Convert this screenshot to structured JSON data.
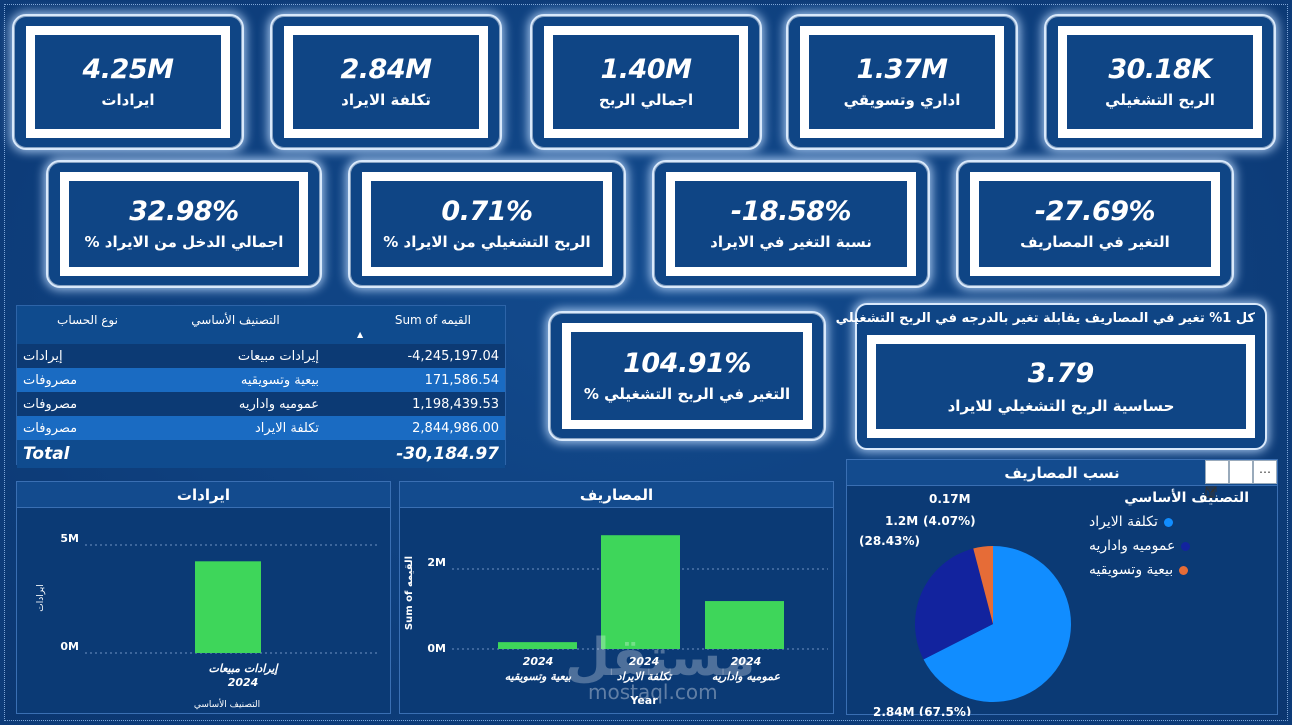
{
  "kpis_top": [
    {
      "value": "4.25M",
      "label": "ايرادات"
    },
    {
      "value": "2.84M",
      "label": "تكلفة الايراد"
    },
    {
      "value": "1.40M",
      "label": "اجمالي الربح"
    },
    {
      "value": "1.37M",
      "label": "اداري وتسويقي"
    },
    {
      "value": "30.18K",
      "label": "الربح التشغيلي"
    }
  ],
  "kpis_mid": [
    {
      "value": "32.98%",
      "label": "اجمالي الدخل من الايراد %"
    },
    {
      "value": "0.71%",
      "label": "الربح التشغيلي من الايراد %"
    },
    {
      "value": "-18.58%",
      "label": "نسبة التغير في الايراد"
    },
    {
      "value": "-27.69%",
      "label": "التغير في المصاريف"
    }
  ],
  "kpi_op_change": {
    "value": "104.91%",
    "label": "التغير في الربح التشغيلي %"
  },
  "sensitivity": {
    "title": "كل 1% تغير في المصاريف يقابلة تغير بالدرجه في الربح التشغيلي",
    "value": "3.79",
    "label": "حساسية الربح التشغيلي للايراد"
  },
  "table": {
    "headers": {
      "account_type": "نوع الحساب",
      "category": "التصنيف الأساسي",
      "value": "Sum of القيمه"
    },
    "rows": [
      {
        "account_type": "إيرادات",
        "category": "إيرادات مبيعات",
        "value": "-4,245,197.04"
      },
      {
        "account_type": "مصروفات",
        "category": "بيعية وتسويقيه",
        "value": "171,586.54"
      },
      {
        "account_type": "مصروفات",
        "category": "عموميه واداريه",
        "value": "1,198,439.53"
      },
      {
        "account_type": "مصروفات",
        "category": "تكلفة الايراد",
        "value": "2,844,986.00"
      }
    ],
    "total_label": "Total",
    "total_value": "-30,184.97"
  },
  "revenue_chart": {
    "title": "ايرادات",
    "ylabel": "ايرادات",
    "xlabel": "التصنيف الأساسي",
    "tick_labels": {
      "top": "5M",
      "bottom": "0M"
    },
    "category_label": "إيرادات مبيعات",
    "year_label": "2024"
  },
  "expenses_chart": {
    "title": "المصاريف",
    "ylabel": "Sum of القيمه",
    "xlabel": "Year",
    "tick_labels": {
      "top": "2M",
      "bottom": "0M"
    },
    "bars": [
      {
        "year": "2024",
        "category": "بيعية وتسويقيه"
      },
      {
        "year": "2024",
        "category": "تكلفة الايراد"
      },
      {
        "year": "2024",
        "category": "عموميه واداريه"
      }
    ]
  },
  "pie_chart": {
    "title": "نسب المصاريف",
    "legend_title": "التصنيف الأساسي",
    "slices": [
      {
        "name": "تكلفة الايراد",
        "color": "#118dff",
        "label": "2.84M (67.5%)"
      },
      {
        "name": "عموميه واداريه",
        "color": "#12239e",
        "label_a": "1.2M",
        "label_b": "(28.43%)"
      },
      {
        "name": "بيعية وتسويقيه",
        "color": "#e66c37",
        "label_a": "0.17M",
        "label_b": "(4.07%)"
      }
    ],
    "toolbar": {
      "filter_icon": "filter-icon",
      "focus_icon": "focus-mode-icon",
      "more_icon": "more-options-icon"
    }
  },
  "chart_data": [
    {
      "type": "bar",
      "title": "ايرادات",
      "categories": [
        "إيرادات مبيعات"
      ],
      "series_year": "2024",
      "values": [
        4245197.04
      ],
      "ylabel": "ايرادات",
      "xlabel": "التصنيف الأساسي",
      "ylim": [
        0,
        5000000
      ],
      "color": "#3ed65a"
    },
    {
      "type": "bar",
      "title": "المصاريف",
      "categories": [
        "بيعية وتسويقيه",
        "تكلفة الايراد",
        "عموميه واداريه"
      ],
      "series_year": "2024",
      "values": [
        171586.54,
        2844986.0,
        1198439.53
      ],
      "ylabel": "Sum of القيمه",
      "xlabel": "Year",
      "ylim": [
        0,
        3000000
      ],
      "color": "#3ed65a"
    },
    {
      "type": "pie",
      "title": "نسب المصاريف",
      "categories": [
        "تكلفة الايراد",
        "عموميه واداريه",
        "بيعية وتسويقيه"
      ],
      "values": [
        2844986.0,
        1198439.53,
        171586.54
      ],
      "percentages": [
        67.5,
        28.43,
        4.07
      ],
      "colors": [
        "#118dff",
        "#12239e",
        "#e66c37"
      ],
      "legend_position": "top-right"
    }
  ],
  "watermark": {
    "text": "مستقل",
    "sub": "mostaql.com"
  }
}
